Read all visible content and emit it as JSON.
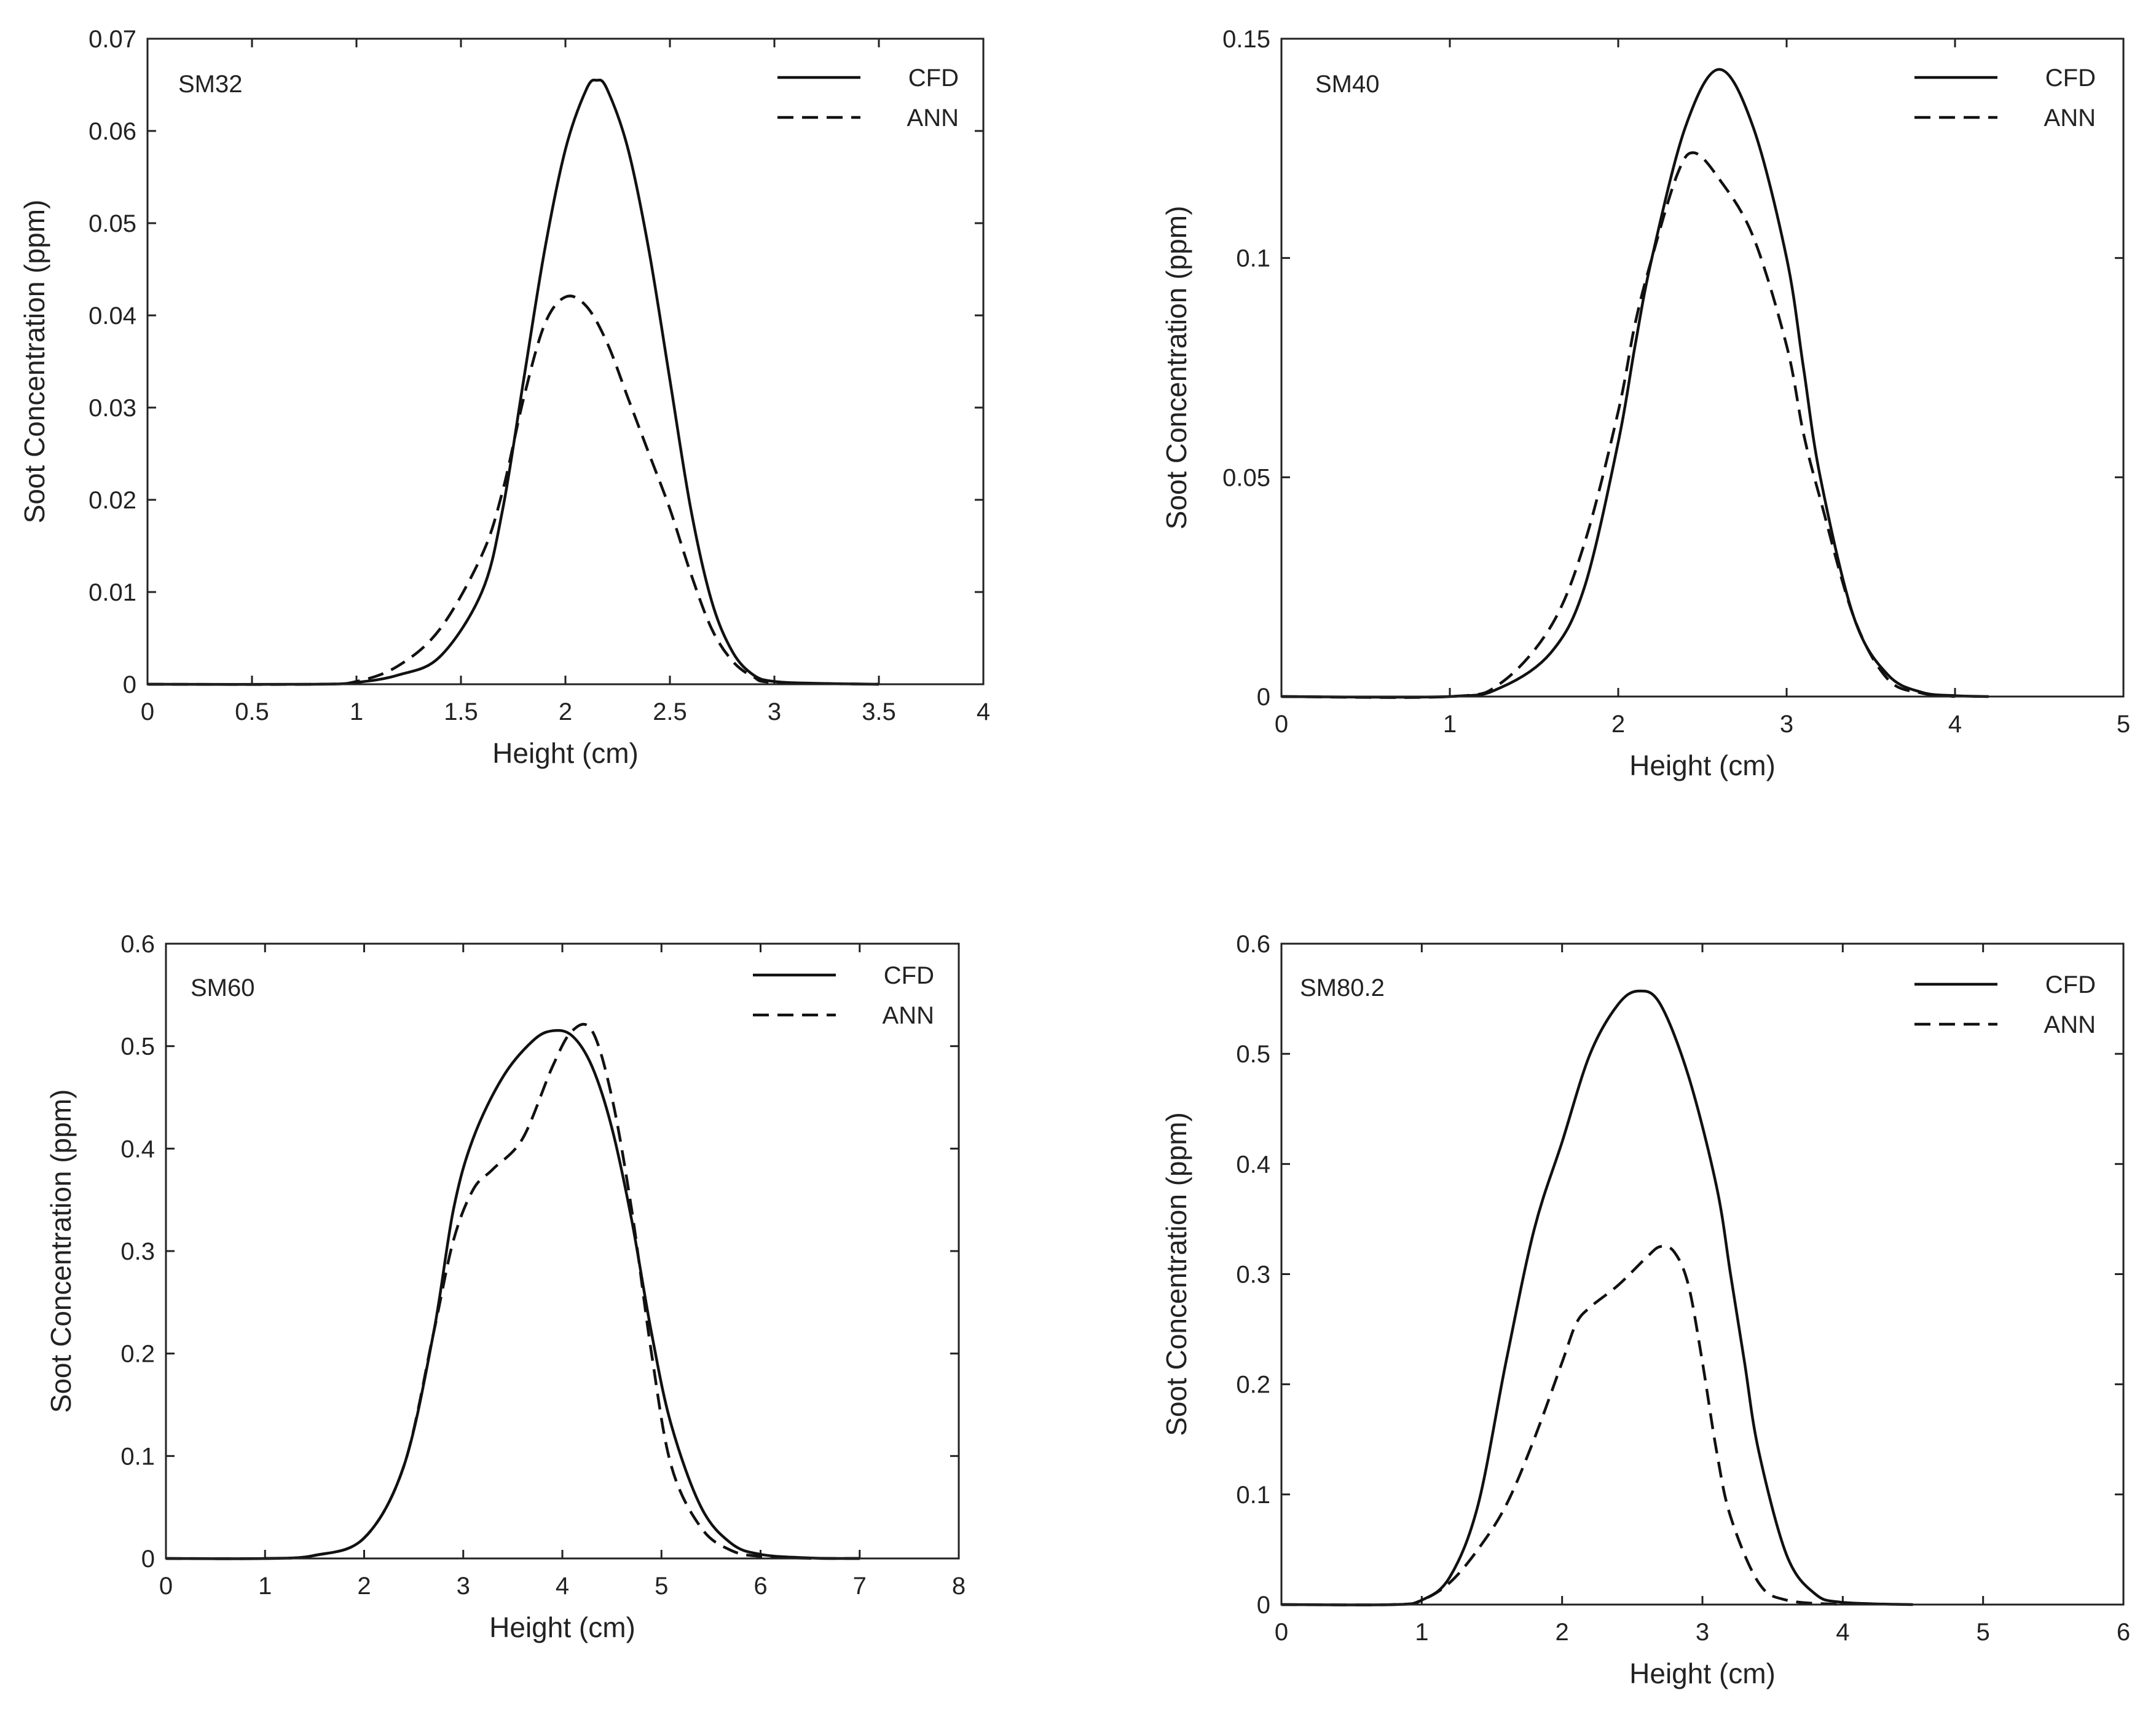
{
  "figure_title": "",
  "legend": {
    "cfd": "CFD",
    "ann": "ANN"
  },
  "chart_data": [
    {
      "type": "line",
      "label": "SM32",
      "xlabel": "Height (cm)",
      "ylabel": "Soot Concentration (ppm)",
      "xlim": [
        0,
        4
      ],
      "ylim": [
        0,
        0.07
      ],
      "xticks": [
        0,
        0.5,
        1,
        1.5,
        2,
        2.5,
        3,
        3.5,
        4
      ],
      "xtick_labels": [
        "0",
        "0.5",
        "1",
        "1.5",
        "2",
        "2.5",
        "3",
        "3.5",
        "4"
      ],
      "yticks": [
        0,
        0.01,
        0.02,
        0.03,
        0.04,
        0.05,
        0.06,
        0.07
      ],
      "ytick_labels": [
        "0",
        "0.01",
        "0.02",
        "0.03",
        "0.04",
        "0.05",
        "0.06",
        "0.07"
      ],
      "legend_position": "top-right",
      "series": [
        {
          "name": "CFD",
          "style": "solid",
          "x": [
            0,
            0.8,
            1.0,
            1.2,
            1.4,
            1.6,
            1.7,
            1.8,
            1.9,
            2.0,
            2.1,
            2.15,
            2.2,
            2.3,
            2.4,
            2.5,
            2.6,
            2.7,
            2.8,
            2.9,
            3.0,
            3.2,
            3.5
          ],
          "y": [
            0,
            0,
            0.0002,
            0.001,
            0.003,
            0.01,
            0.019,
            0.033,
            0.047,
            0.058,
            0.0645,
            0.0655,
            0.0645,
            0.058,
            0.047,
            0.033,
            0.019,
            0.009,
            0.0035,
            0.001,
            0.0003,
            0.0001,
            0
          ]
        },
        {
          "name": "ANN",
          "style": "dashed",
          "x": [
            0,
            0.8,
            1.0,
            1.2,
            1.4,
            1.6,
            1.7,
            1.8,
            1.9,
            2.0,
            2.1,
            2.2,
            2.3,
            2.4,
            2.5,
            2.6,
            2.7,
            2.8,
            2.9,
            3.0,
            3.5
          ],
          "y": [
            0,
            0,
            0.0003,
            0.002,
            0.006,
            0.014,
            0.021,
            0.031,
            0.039,
            0.042,
            0.041,
            0.037,
            0.031,
            0.025,
            0.019,
            0.012,
            0.006,
            0.0025,
            0.0008,
            0.0002,
            0
          ]
        }
      ]
    },
    {
      "type": "line",
      "label": "SM40",
      "xlabel": "Height (cm)",
      "ylabel": "Soot Concentration (ppm)",
      "xlim": [
        0,
        5
      ],
      "ylim": [
        0,
        0.15
      ],
      "xticks": [
        0,
        1,
        2,
        3,
        4,
        5
      ],
      "xtick_labels": [
        "0",
        "1",
        "2",
        "3",
        "4",
        "5"
      ],
      "yticks": [
        0,
        0.05,
        0.1,
        0.15
      ],
      "ytick_labels": [
        "0",
        "0.05",
        "0.1",
        "0.15"
      ],
      "legend_position": "top-right",
      "series": [
        {
          "name": "CFD",
          "style": "solid",
          "x": [
            0,
            1.0,
            1.3,
            1.6,
            1.8,
            2.0,
            2.1,
            2.2,
            2.4,
            2.6,
            2.8,
            3.0,
            3.1,
            3.2,
            3.4,
            3.6,
            3.8,
            4.0,
            4.2
          ],
          "y": [
            0,
            0,
            0.002,
            0.01,
            0.025,
            0.058,
            0.08,
            0.1,
            0.13,
            0.143,
            0.13,
            0.1,
            0.075,
            0.05,
            0.018,
            0.005,
            0.001,
            0.0002,
            0
          ]
        },
        {
          "name": "ANN",
          "style": "dashed",
          "x": [
            0,
            1.0,
            1.3,
            1.6,
            1.8,
            2.0,
            2.1,
            2.2,
            2.35,
            2.45,
            2.6,
            2.8,
            3.0,
            3.1,
            3.2,
            3.4,
            3.6,
            3.8,
            4.0
          ],
          "y": [
            0,
            0,
            0.003,
            0.016,
            0.035,
            0.065,
            0.085,
            0.1,
            0.119,
            0.124,
            0.118,
            0.105,
            0.08,
            0.06,
            0.045,
            0.018,
            0.004,
            0.0008,
            0
          ]
        }
      ]
    },
    {
      "type": "line",
      "label": "SM60",
      "xlabel": "Height (cm)",
      "ylabel": "Soot Concentration (ppm)",
      "xlim": [
        0,
        8
      ],
      "ylim": [
        0,
        0.6
      ],
      "xticks": [
        0,
        1,
        2,
        3,
        4,
        5,
        6,
        7,
        8
      ],
      "xtick_labels": [
        "0",
        "1",
        "2",
        "3",
        "4",
        "5",
        "6",
        "7",
        "8"
      ],
      "yticks": [
        0,
        0.1,
        0.2,
        0.3,
        0.4,
        0.5,
        0.6
      ],
      "ytick_labels": [
        "0",
        "0.1",
        "0.2",
        "0.3",
        "0.4",
        "0.5",
        "0.6"
      ],
      "legend_position": "top-right",
      "series": [
        {
          "name": "CFD",
          "style": "solid",
          "x": [
            0,
            1.0,
            1.5,
            2.0,
            2.4,
            2.7,
            2.9,
            3.1,
            3.4,
            3.7,
            3.9,
            4.1,
            4.3,
            4.5,
            4.7,
            4.9,
            5.1,
            5.4,
            5.7,
            6.0,
            6.5,
            7.0
          ],
          "y": [
            0,
            0,
            0.003,
            0.02,
            0.09,
            0.22,
            0.34,
            0.41,
            0.47,
            0.505,
            0.515,
            0.51,
            0.48,
            0.42,
            0.33,
            0.22,
            0.13,
            0.05,
            0.015,
            0.004,
            0.0005,
            0
          ]
        },
        {
          "name": "ANN",
          "style": "dashed",
          "x": [
            0,
            1.0,
            1.5,
            2.0,
            2.4,
            2.7,
            2.9,
            3.1,
            3.3,
            3.6,
            3.9,
            4.1,
            4.3,
            4.5,
            4.7,
            4.9,
            5.1,
            5.4,
            5.7,
            6.0,
            6.5,
            7.0
          ],
          "y": [
            0,
            0,
            0.003,
            0.02,
            0.09,
            0.22,
            0.31,
            0.36,
            0.38,
            0.41,
            0.48,
            0.515,
            0.515,
            0.45,
            0.34,
            0.2,
            0.09,
            0.03,
            0.008,
            0.002,
            0.0002,
            0
          ]
        }
      ]
    },
    {
      "type": "line",
      "label": "SM80.2",
      "xlabel": "Height (cm)",
      "ylabel": "Soot Concentration (ppm)",
      "xlim": [
        0,
        6
      ],
      "ylim": [
        0,
        0.6
      ],
      "xticks": [
        0,
        1,
        2,
        3,
        4,
        5,
        6
      ],
      "xtick_labels": [
        "0",
        "1",
        "2",
        "3",
        "4",
        "5",
        "6"
      ],
      "yticks": [
        0,
        0.1,
        0.2,
        0.3,
        0.4,
        0.5,
        0.6
      ],
      "ytick_labels": [
        "0",
        "0.1",
        "0.2",
        "0.3",
        "0.4",
        "0.5",
        "0.6"
      ],
      "legend_position": "top-right",
      "series": [
        {
          "name": "CFD",
          "style": "solid",
          "x": [
            0,
            0.8,
            1.0,
            1.2,
            1.4,
            1.6,
            1.8,
            2.0,
            2.2,
            2.4,
            2.55,
            2.7,
            2.9,
            3.1,
            3.2,
            3.3,
            3.4,
            3.6,
            3.8,
            4.0,
            4.5
          ],
          "y": [
            0,
            0,
            0.004,
            0.025,
            0.09,
            0.22,
            0.34,
            0.42,
            0.5,
            0.545,
            0.557,
            0.545,
            0.48,
            0.38,
            0.3,
            0.22,
            0.14,
            0.045,
            0.01,
            0.002,
            0
          ]
        },
        {
          "name": "ANN",
          "style": "dashed",
          "x": [
            0,
            0.8,
            1.0,
            1.2,
            1.4,
            1.6,
            1.8,
            2.0,
            2.1,
            2.2,
            2.4,
            2.6,
            2.7,
            2.8,
            2.9,
            3.0,
            3.1,
            3.2,
            3.4,
            3.6,
            4.0
          ],
          "y": [
            0,
            0,
            0.004,
            0.02,
            0.05,
            0.09,
            0.15,
            0.22,
            0.255,
            0.27,
            0.29,
            0.315,
            0.325,
            0.32,
            0.29,
            0.22,
            0.14,
            0.08,
            0.02,
            0.004,
            0
          ]
        }
      ]
    }
  ]
}
